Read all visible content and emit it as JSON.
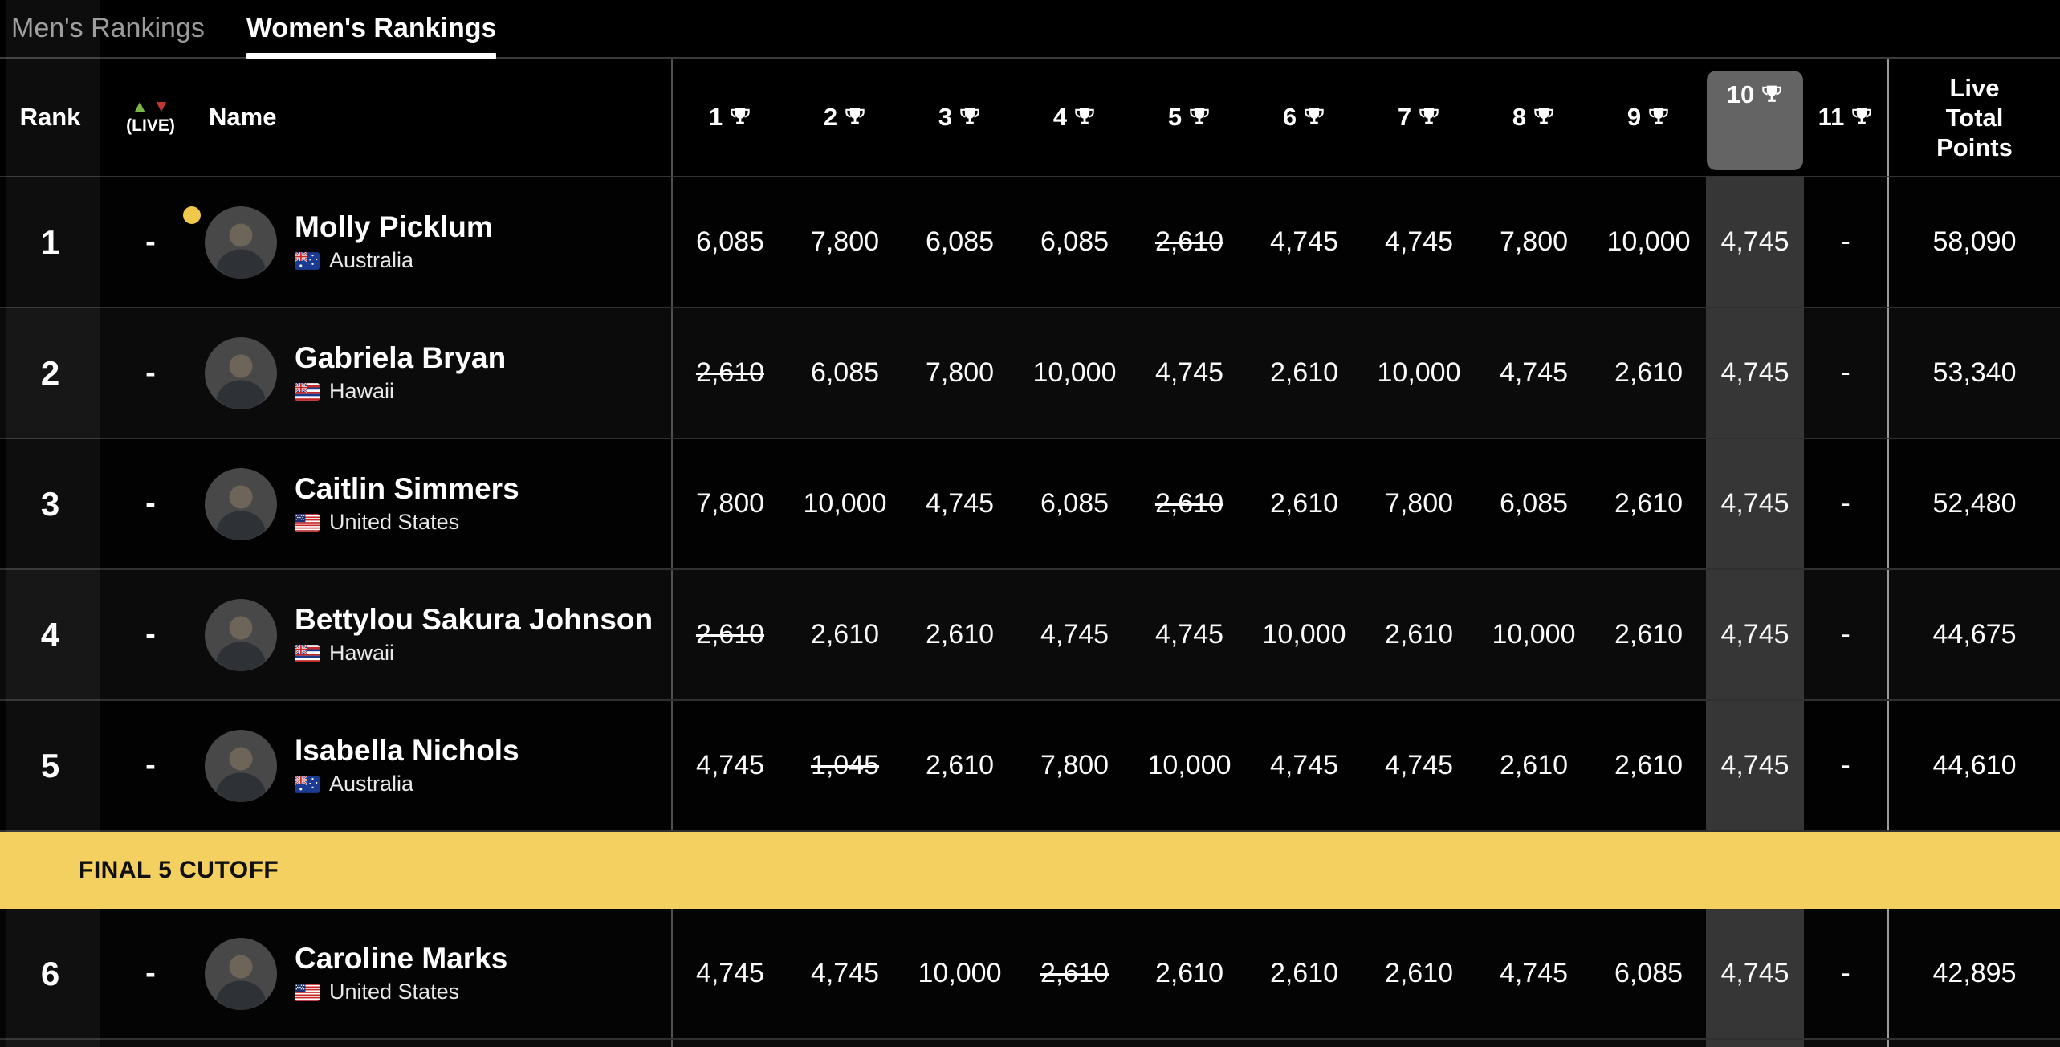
{
  "tabs": [
    {
      "label": "Men's Rankings",
      "active": false
    },
    {
      "label": "Women's Rankings",
      "active": true
    }
  ],
  "table": {
    "rank_header": "Rank",
    "live_label": "(LIVE)",
    "name_header": "Name",
    "event_columns": [
      "1",
      "2",
      "3",
      "4",
      "5",
      "6",
      "7",
      "8",
      "9",
      "10",
      "11"
    ],
    "highlight_index": 9,
    "highlighted_column": "10",
    "total_header": "Live Total Points",
    "cutoff_label": "FINAL 5 CUTOFF",
    "rows": [
      {
        "rank": "1",
        "change": "-",
        "leader": true,
        "name": "Molly Picklum",
        "country": "Australia",
        "flag": "australia",
        "below_cutoff": false,
        "points": [
          {
            "v": "6,085"
          },
          {
            "v": "7,800"
          },
          {
            "v": "6,085"
          },
          {
            "v": "6,085"
          },
          {
            "v": "2,610",
            "struck": true
          },
          {
            "v": "4,745"
          },
          {
            "v": "4,745"
          },
          {
            "v": "7,800"
          },
          {
            "v": "10,000"
          },
          {
            "v": "4,745"
          },
          {
            "v": "-"
          }
        ],
        "total": "58,090"
      },
      {
        "rank": "2",
        "change": "-",
        "leader": false,
        "name": "Gabriela Bryan",
        "country": "Hawaii",
        "flag": "hawaii",
        "below_cutoff": false,
        "points": [
          {
            "v": "2,610",
            "struck": true
          },
          {
            "v": "6,085"
          },
          {
            "v": "7,800"
          },
          {
            "v": "10,000"
          },
          {
            "v": "4,745"
          },
          {
            "v": "2,610"
          },
          {
            "v": "10,000"
          },
          {
            "v": "4,745"
          },
          {
            "v": "2,610"
          },
          {
            "v": "4,745"
          },
          {
            "v": "-"
          }
        ],
        "total": "53,340"
      },
      {
        "rank": "3",
        "change": "-",
        "leader": false,
        "name": "Caitlin Simmers",
        "country": "United States",
        "flag": "united-states",
        "below_cutoff": false,
        "points": [
          {
            "v": "7,800"
          },
          {
            "v": "10,000"
          },
          {
            "v": "4,745"
          },
          {
            "v": "6,085"
          },
          {
            "v": "2,610",
            "struck": true
          },
          {
            "v": "2,610"
          },
          {
            "v": "7,800"
          },
          {
            "v": "6,085"
          },
          {
            "v": "2,610"
          },
          {
            "v": "4,745"
          },
          {
            "v": "-"
          }
        ],
        "total": "52,480"
      },
      {
        "rank": "4",
        "change": "-",
        "leader": false,
        "name": "Bettylou Sakura Johnson",
        "country": "Hawaii",
        "flag": "hawaii",
        "below_cutoff": false,
        "points": [
          {
            "v": "2,610",
            "struck": true
          },
          {
            "v": "2,610"
          },
          {
            "v": "2,610"
          },
          {
            "v": "4,745"
          },
          {
            "v": "4,745"
          },
          {
            "v": "10,000"
          },
          {
            "v": "2,610"
          },
          {
            "v": "10,000"
          },
          {
            "v": "2,610"
          },
          {
            "v": "4,745"
          },
          {
            "v": "-"
          }
        ],
        "total": "44,675"
      },
      {
        "rank": "5",
        "change": "-",
        "leader": false,
        "name": "Isabella Nichols",
        "country": "Australia",
        "flag": "australia",
        "below_cutoff": false,
        "points": [
          {
            "v": "4,745"
          },
          {
            "v": "1,045",
            "struck": true
          },
          {
            "v": "2,610"
          },
          {
            "v": "7,800"
          },
          {
            "v": "10,000"
          },
          {
            "v": "4,745"
          },
          {
            "v": "4,745"
          },
          {
            "v": "2,610"
          },
          {
            "v": "2,610"
          },
          {
            "v": "4,745"
          },
          {
            "v": "-"
          }
        ],
        "total": "44,610"
      },
      {
        "rank": "6",
        "change": "-",
        "leader": false,
        "name": "Caroline Marks",
        "country": "United States",
        "flag": "united-states",
        "below_cutoff": true,
        "points": [
          {
            "v": "4,745"
          },
          {
            "v": "4,745"
          },
          {
            "v": "10,000"
          },
          {
            "v": "2,610",
            "struck": true
          },
          {
            "v": "2,610"
          },
          {
            "v": "2,610"
          },
          {
            "v": "2,610"
          },
          {
            "v": "4,745"
          },
          {
            "v": "6,085"
          },
          {
            "v": "4,745"
          },
          {
            "v": "-"
          }
        ],
        "total": "42,895"
      }
    ]
  },
  "colors": {
    "cutoff_banner": "#F3D05F",
    "leader_dot": "#F0C84C",
    "highlight_column": "#363636",
    "highlight_header_box": "#646464",
    "up_arrow": "#7AB648",
    "down_arrow": "#C23535"
  }
}
